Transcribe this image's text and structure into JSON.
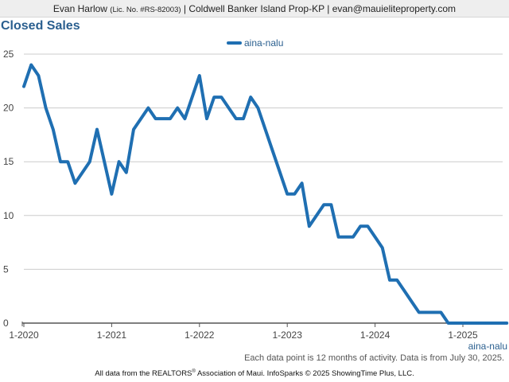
{
  "header": {
    "agent_name": "Evan Harlow",
    "license": "(Lic. No. #RS-82003)",
    "separator_1": "|",
    "brokerage": "Coldwell Banker Island Prop-KP",
    "separator_2": "|",
    "email": "evan@mauieliteproperty.com"
  },
  "footnote": "Each data point is 12 months of activity. Data is from July 30, 2025.",
  "credit": {
    "before_mark": "All data from the REALTORS",
    "mark": "®",
    "after_mark": " Association of Maui. InfoSparks © 2025 ShowingTime Plus, LLC."
  },
  "colors": {
    "series": "#1f6fb2",
    "title": "#2a5f8f",
    "grid": "#cccccc",
    "axis": "#555555"
  },
  "chart_data": {
    "type": "line",
    "title": "Closed Sales",
    "legend_position": "top-center",
    "grid": true,
    "ylim": [
      0,
      25
    ],
    "yticks": [
      0,
      5,
      10,
      15,
      20,
      25
    ],
    "xlim": [
      "2020-01",
      "2025-07"
    ],
    "xticks": [
      {
        "date": "2020-01",
        "label": "1-2020"
      },
      {
        "date": "2021-01",
        "label": "1-2021"
      },
      {
        "date": "2022-01",
        "label": "1-2022"
      },
      {
        "date": "2023-01",
        "label": "1-2023"
      },
      {
        "date": "2024-01",
        "label": "1-2024"
      },
      {
        "date": "2025-01",
        "label": "1-2025"
      }
    ],
    "x_axis_end_label": "aina-nalu",
    "series": [
      {
        "name": "aina-nalu",
        "points": [
          {
            "x": "2020-01",
            "y": 22
          },
          {
            "x": "2020-02",
            "y": 24
          },
          {
            "x": "2020-03",
            "y": 23
          },
          {
            "x": "2020-04",
            "y": 20
          },
          {
            "x": "2020-05",
            "y": 18
          },
          {
            "x": "2020-06",
            "y": 15
          },
          {
            "x": "2020-07",
            "y": 15
          },
          {
            "x": "2020-08",
            "y": 13
          },
          {
            "x": "2020-09",
            "y": 14
          },
          {
            "x": "2020-10",
            "y": 15
          },
          {
            "x": "2020-11",
            "y": 18
          },
          {
            "x": "2020-12",
            "y": 15
          },
          {
            "x": "2021-01",
            "y": 12
          },
          {
            "x": "2021-02",
            "y": 15
          },
          {
            "x": "2021-03",
            "y": 14
          },
          {
            "x": "2021-04",
            "y": 18
          },
          {
            "x": "2021-05",
            "y": 19
          },
          {
            "x": "2021-06",
            "y": 20
          },
          {
            "x": "2021-07",
            "y": 19
          },
          {
            "x": "2021-08",
            "y": 19
          },
          {
            "x": "2021-09",
            "y": 19
          },
          {
            "x": "2021-10",
            "y": 20
          },
          {
            "x": "2021-11",
            "y": 19
          },
          {
            "x": "2021-12",
            "y": 21
          },
          {
            "x": "2022-01",
            "y": 23
          },
          {
            "x": "2022-02",
            "y": 19
          },
          {
            "x": "2022-03",
            "y": 21
          },
          {
            "x": "2022-04",
            "y": 21
          },
          {
            "x": "2022-05",
            "y": 20
          },
          {
            "x": "2022-06",
            "y": 19
          },
          {
            "x": "2022-07",
            "y": 19
          },
          {
            "x": "2022-08",
            "y": 21
          },
          {
            "x": "2022-09",
            "y": 20
          },
          {
            "x": "2022-10",
            "y": 18
          },
          {
            "x": "2022-11",
            "y": 16
          },
          {
            "x": "2022-12",
            "y": 14
          },
          {
            "x": "2023-01",
            "y": 12
          },
          {
            "x": "2023-02",
            "y": 12
          },
          {
            "x": "2023-03",
            "y": 13
          },
          {
            "x": "2023-04",
            "y": 9
          },
          {
            "x": "2023-05",
            "y": 10
          },
          {
            "x": "2023-06",
            "y": 11
          },
          {
            "x": "2023-07",
            "y": 11
          },
          {
            "x": "2023-08",
            "y": 8
          },
          {
            "x": "2023-09",
            "y": 8
          },
          {
            "x": "2023-10",
            "y": 8
          },
          {
            "x": "2023-11",
            "y": 9
          },
          {
            "x": "2023-12",
            "y": 9
          },
          {
            "x": "2024-01",
            "y": 8
          },
          {
            "x": "2024-02",
            "y": 7
          },
          {
            "x": "2024-03",
            "y": 4
          },
          {
            "x": "2024-04",
            "y": 4
          },
          {
            "x": "2024-05",
            "y": 3
          },
          {
            "x": "2024-06",
            "y": 2
          },
          {
            "x": "2024-07",
            "y": 1
          },
          {
            "x": "2024-08",
            "y": 1
          },
          {
            "x": "2024-09",
            "y": 1
          },
          {
            "x": "2024-10",
            "y": 1
          },
          {
            "x": "2024-11",
            "y": 0
          },
          {
            "x": "2024-12",
            "y": 0
          },
          {
            "x": "2025-01",
            "y": 0
          },
          {
            "x": "2025-02",
            "y": 0
          },
          {
            "x": "2025-03",
            "y": 0
          },
          {
            "x": "2025-04",
            "y": 0
          },
          {
            "x": "2025-05",
            "y": 0
          },
          {
            "x": "2025-06",
            "y": 0
          },
          {
            "x": "2025-07",
            "y": 0
          }
        ]
      }
    ]
  }
}
